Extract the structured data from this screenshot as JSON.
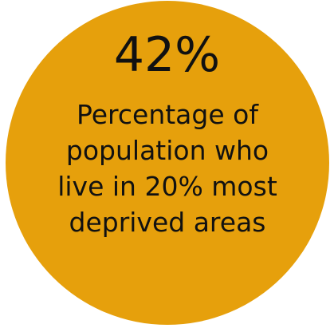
{
  "stat": {
    "value": "42%",
    "caption_lines": [
      "Percentage of",
      "population who",
      "live in 20% most",
      "deprived areas"
    ]
  },
  "colors": {
    "circle": "#e6a00c",
    "text": "#111111",
    "background": "#ffffff"
  }
}
